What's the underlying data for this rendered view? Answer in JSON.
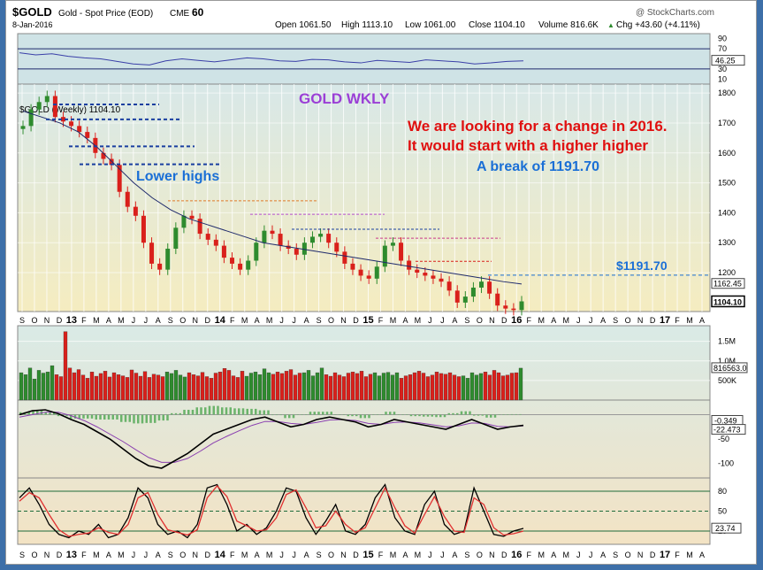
{
  "header": {
    "symbol": "$GOLD",
    "name": "Gold - Spot Price (EOD)",
    "exchange": "CME",
    "ratio": "60",
    "watermark": "@ StockCharts.com",
    "date": "8-Jan-2016",
    "open": "Open 1061.50",
    "high": "High 1113.10",
    "low": "Low 1061.00",
    "close": "Close 1104.10",
    "volume": "Volume 816.6K",
    "chg": "Chg +43.60 (+4.11%)",
    "chg_arrow": "▲"
  },
  "colors": {
    "up": "#2e8b2e",
    "down": "#d9201b",
    "rsi_line": "#3a3fa8",
    "ma_line": "#1f2a6b",
    "macd_line": "#000000",
    "signal_line": "#8a3fb0",
    "stoch_k": "#000000",
    "stoch_d": "#e03030",
    "price_bg_top": "#d8e8e8",
    "price_bg_bottom": "#f5ecc0",
    "annotation_red": "#e01010",
    "annotation_blue": "#1a6fd6",
    "annotation_purple": "#9b3fd6"
  },
  "annotations": {
    "gold_wkly": "GOLD WKLY",
    "line1": "We are looking for a change in 2016.",
    "line2": "It would start with a higher higher",
    "line3": "A break of 1191.70",
    "lower_highs": "Lower highs",
    "level_label": "$1191.70"
  },
  "chart_data": [
    {
      "type": "line",
      "panel": "RSI",
      "y_ticks": [
        90,
        70,
        30,
        10
      ],
      "ylim": [
        0,
        100
      ],
      "last_value_label": "46.25",
      "series": [
        {
          "values": [
            62,
            58,
            60,
            55,
            52,
            50,
            45,
            40,
            38,
            46,
            50,
            47,
            44,
            48,
            52,
            50,
            46,
            45,
            49,
            48,
            44,
            42,
            47,
            45,
            43,
            48,
            46,
            44,
            40,
            42,
            45,
            46
          ]
        }
      ]
    },
    {
      "type": "line",
      "panel": "Price",
      "label": "$GOLD (Weekly) 1104.10",
      "y_ticks": [
        1800,
        1700,
        1600,
        1500,
        1400,
        1300,
        1200
      ],
      "ylim": [
        1070,
        1830
      ],
      "x_ticks": [
        "S",
        "O",
        "N",
        "D",
        "13",
        "F",
        "M",
        "A",
        "M",
        "J",
        "J",
        "A",
        "S",
        "O",
        "N",
        "D",
        "14",
        "F",
        "M",
        "A",
        "M",
        "J",
        "J",
        "A",
        "S",
        "O",
        "N",
        "D",
        "15",
        "F",
        "M",
        "A",
        "M",
        "J",
        "J",
        "A",
        "S",
        "O",
        "N",
        "D",
        "16",
        "F",
        "M",
        "A",
        "M",
        "J",
        "J",
        "A",
        "S",
        "O",
        "N",
        "D",
        "17",
        "F",
        "M",
        "A"
      ],
      "right_labels": [
        "1191.70",
        "1162.45",
        "1104.10"
      ],
      "close": [
        1690,
        1745,
        1770,
        1790,
        1720,
        1705,
        1690,
        1670,
        1650,
        1600,
        1580,
        1560,
        1470,
        1420,
        1390,
        1300,
        1230,
        1210,
        1280,
        1350,
        1390,
        1380,
        1330,
        1310,
        1290,
        1250,
        1230,
        1210,
        1240,
        1300,
        1340,
        1330,
        1290,
        1280,
        1260,
        1300,
        1320,
        1330,
        1300,
        1270,
        1230,
        1210,
        1190,
        1180,
        1220,
        1290,
        1300,
        1240,
        1210,
        1200,
        1190,
        1180,
        1170,
        1140,
        1100,
        1120,
        1150,
        1170,
        1130,
        1090,
        1080,
        1075,
        1104
      ],
      "moving_average": [
        1740,
        1720,
        1700,
        1670,
        1620,
        1560,
        1500,
        1450,
        1410,
        1380,
        1360,
        1340,
        1320,
        1300,
        1290,
        1280,
        1270,
        1260,
        1250,
        1240,
        1230,
        1220,
        1210,
        1200,
        1190,
        1180,
        1170,
        1162
      ],
      "resistance": 1191.7
    },
    {
      "type": "bar",
      "panel": "Volume",
      "y_ticks": [
        "1.5M",
        "1.0M",
        "500K"
      ],
      "last_value_label": "816563.0",
      "values": [
        700,
        650,
        820,
        540,
        760,
        690,
        720,
        880,
        650,
        600,
        1750,
        820,
        700,
        780,
        640,
        560,
        720,
        610,
        680,
        740,
        590,
        700,
        650,
        620,
        580,
        770,
        690,
        610,
        730,
        580,
        660,
        640,
        600,
        720,
        680,
        760,
        640,
        590,
        700,
        650,
        620,
        710,
        600,
        560,
        690,
        720,
        810,
        760,
        620,
        580,
        740,
        610,
        690,
        720,
        650,
        800,
        700,
        660,
        720,
        680,
        740,
        780,
        640,
        690,
        700,
        760,
        620,
        700,
        820,
        650,
        610,
        700,
        640,
        600,
        690,
        720,
        680,
        740,
        600,
        660,
        700,
        620,
        690,
        710,
        640,
        700,
        560,
        620,
        650,
        700,
        740,
        690,
        600,
        640,
        720,
        680,
        660,
        700,
        640,
        600,
        620,
        560,
        700,
        640,
        680,
        720,
        640,
        760,
        700,
        620,
        640,
        690,
        700,
        816
      ]
    },
    {
      "type": "line",
      "panel": "MACD",
      "y_ticks": [
        -50,
        -100
      ],
      "ylim": [
        -130,
        30
      ],
      "last_value_labels": [
        "-0.349",
        "-22.473"
      ],
      "series": [
        {
          "name": "MACD",
          "values": [
            0,
            8,
            10,
            2,
            -10,
            -20,
            -35,
            -50,
            -70,
            -90,
            -105,
            -110,
            -95,
            -80,
            -60,
            -40,
            -30,
            -20,
            -10,
            -5,
            -15,
            -25,
            -20,
            -10,
            -5,
            -10,
            -15,
            -25,
            -20,
            -10,
            -15,
            -20,
            -25,
            -30,
            -20,
            -10,
            -20,
            -30,
            -25,
            -22
          ]
        },
        {
          "name": "Signal",
          "values": [
            -5,
            0,
            5,
            5,
            -2,
            -12,
            -25,
            -40,
            -55,
            -72,
            -88,
            -98,
            -98,
            -90,
            -75,
            -58,
            -45,
            -33,
            -22,
            -14,
            -14,
            -18,
            -20,
            -16,
            -11,
            -10,
            -12,
            -18,
            -20,
            -16,
            -15,
            -17,
            -21,
            -25,
            -23,
            -17,
            -18,
            -24,
            -25,
            -23
          ]
        }
      ]
    },
    {
      "type": "line",
      "panel": "Stochastic",
      "y_ticks": [
        80,
        50,
        20
      ],
      "ylim": [
        0,
        100
      ],
      "last_value_label": "23.74",
      "series": [
        {
          "name": "%K",
          "values": [
            70,
            85,
            60,
            30,
            15,
            10,
            20,
            15,
            30,
            10,
            15,
            40,
            85,
            70,
            30,
            15,
            20,
            10,
            30,
            85,
            90,
            60,
            20,
            30,
            15,
            25,
            50,
            85,
            80,
            40,
            15,
            35,
            60,
            20,
            15,
            30,
            70,
            90,
            40,
            20,
            15,
            60,
            80,
            30,
            15,
            20,
            85,
            50,
            15,
            12,
            20,
            24
          ]
        },
        {
          "name": "%D",
          "values": [
            65,
            78,
            70,
            45,
            22,
            12,
            15,
            17,
            25,
            18,
            15,
            30,
            70,
            78,
            45,
            22,
            18,
            14,
            22,
            70,
            88,
            72,
            35,
            28,
            20,
            22,
            40,
            75,
            82,
            55,
            25,
            28,
            50,
            30,
            18,
            25,
            55,
            85,
            55,
            28,
            17,
            45,
            72,
            42,
            20,
            18,
            70,
            60,
            25,
            14,
            16,
            20
          ]
        }
      ]
    }
  ]
}
